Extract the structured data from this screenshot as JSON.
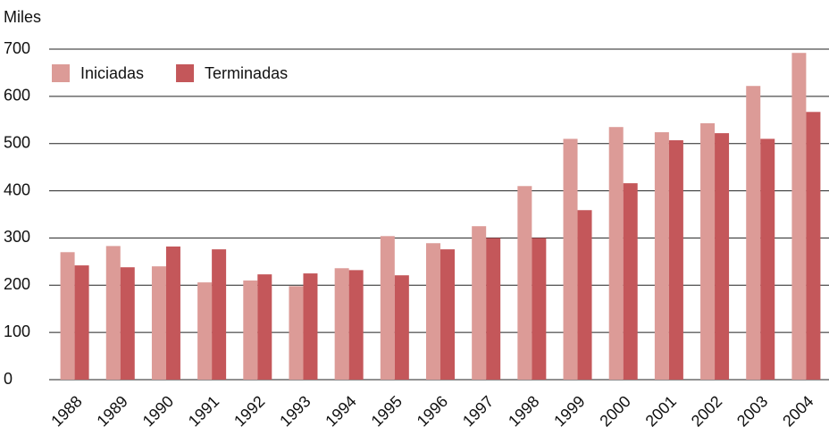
{
  "chart_data": {
    "type": "bar",
    "y_label": "Miles",
    "categories": [
      "1988",
      "1989",
      "1990",
      "1991",
      "1992",
      "1993",
      "1994",
      "1995",
      "1996",
      "1997",
      "1998",
      "1999",
      "2000",
      "2001",
      "2002",
      "2003",
      "2004"
    ],
    "series": [
      {
        "name": "Iniciadas",
        "color": "#dc9b97",
        "values": [
          270,
          283,
          240,
          206,
          210,
          198,
          236,
          304,
          289,
          325,
          410,
          510,
          535,
          524,
          543,
          622,
          692
        ]
      },
      {
        "name": "Terminadas",
        "color": "#c4575a",
        "values": [
          242,
          238,
          282,
          276,
          223,
          225,
          232,
          221,
          276,
          300,
          300,
          359,
          416,
          507,
          522,
          510,
          567
        ]
      }
    ],
    "ylim": [
      0,
      700
    ],
    "yticks": [
      0,
      100,
      200,
      300,
      400,
      500,
      600,
      700
    ],
    "grid": true,
    "legend": "upper left"
  }
}
